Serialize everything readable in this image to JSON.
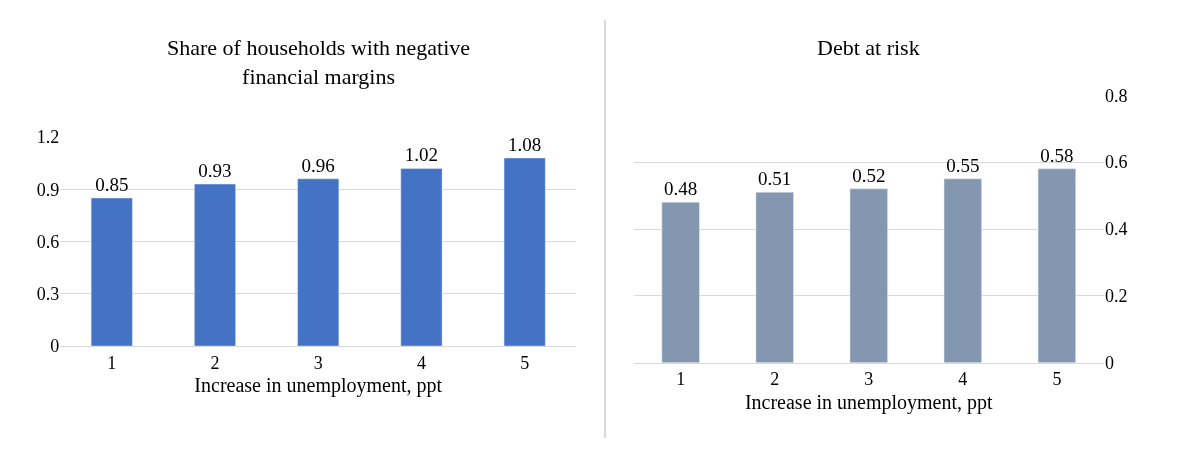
{
  "chart_data": [
    {
      "type": "bar",
      "title": "Share of households with negative financial margins",
      "xlabel": "Increase in unemployment, ppt",
      "categories": [
        "1",
        "2",
        "3",
        "4",
        "5"
      ],
      "values": [
        0.85,
        0.93,
        0.96,
        1.02,
        1.08
      ],
      "color": "#4472c4",
      "ylim": [
        0,
        1.2
      ],
      "yticks": [
        0,
        0.3,
        0.6,
        0.9,
        1.2
      ],
      "grid": "y",
      "data_labels": true
    },
    {
      "type": "bar",
      "title": "Debt at risk",
      "xlabel": "Increase in unemployment, ppt",
      "categories": [
        "1",
        "2",
        "3",
        "4",
        "5"
      ],
      "values": [
        0.48,
        0.51,
        0.52,
        0.55,
        0.58
      ],
      "color": "#8497b0",
      "ylim": [
        0,
        0.8
      ],
      "yticks": [
        0,
        0.2,
        0.4,
        0.6,
        0.8
      ],
      "grid": "y",
      "data_labels": true
    }
  ]
}
